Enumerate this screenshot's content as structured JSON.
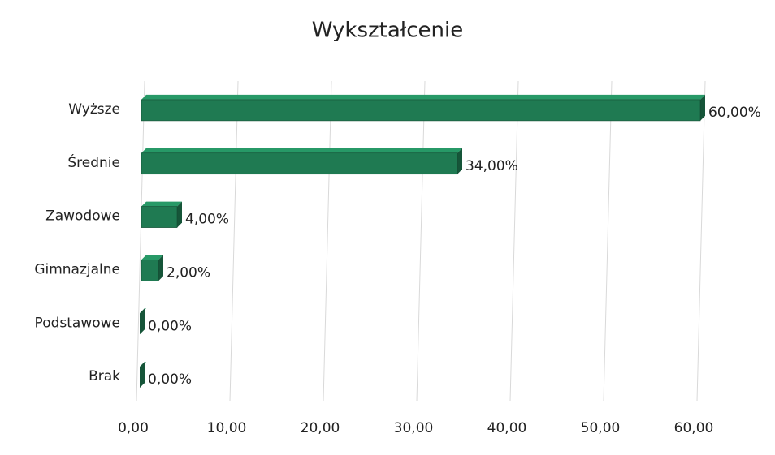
{
  "chart_data": {
    "type": "bar",
    "orientation": "horizontal",
    "title": "Wykształcenie",
    "categories": [
      "Wyższe",
      "Średnie",
      "Zawodowe",
      "Gimnazjalne",
      "Podstawowe",
      "Brak"
    ],
    "values": [
      60,
      34,
      4,
      2,
      0,
      0
    ],
    "value_labels": [
      "60,00%",
      "34,00%",
      "4,00%",
      "2,00%",
      "0,00%",
      "0,00%"
    ],
    "color": "#1f7a52",
    "xlim": [
      0,
      60
    ],
    "xticks": [
      {
        "value": 0,
        "label": "0,00"
      },
      {
        "value": 10,
        "label": "10,00"
      },
      {
        "value": 20,
        "label": "20,00"
      },
      {
        "value": 30,
        "label": "30,00"
      },
      {
        "value": 40,
        "label": "40,00"
      },
      {
        "value": 50,
        "label": "50,00"
      },
      {
        "value": 60,
        "label": "60,00"
      }
    ],
    "grid": true
  }
}
